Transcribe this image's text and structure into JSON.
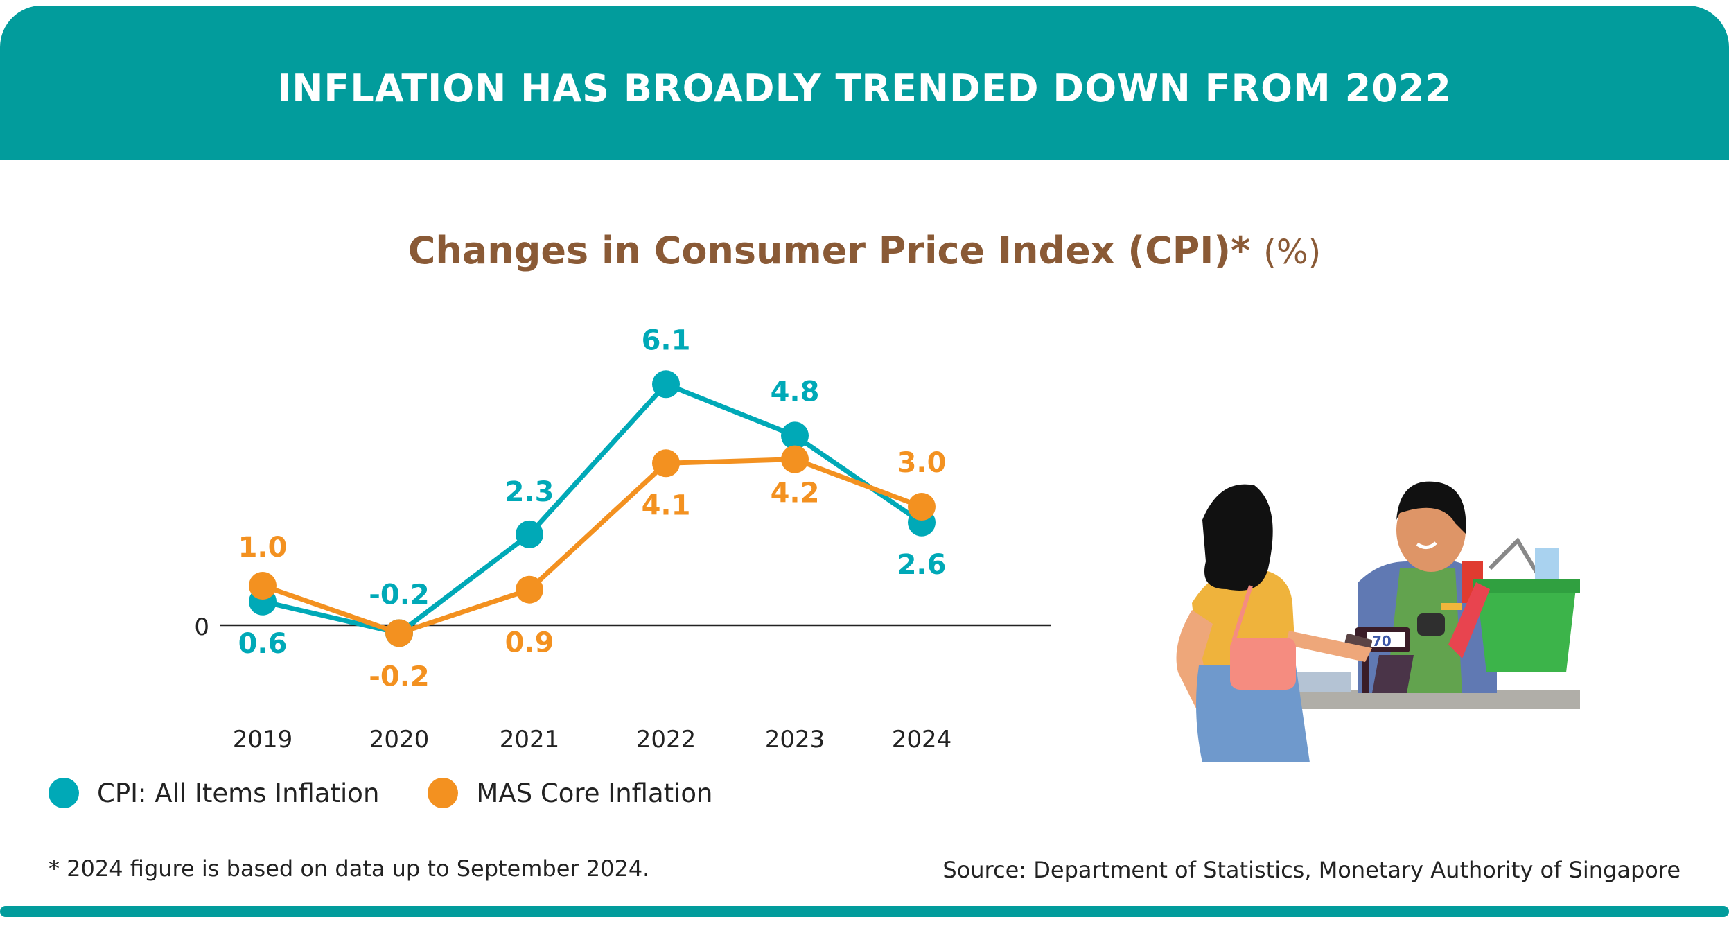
{
  "header": {
    "title": "INFLATION HAS BROADLY TRENDED DOWN FROM 2022"
  },
  "colors": {
    "teal_header": "#029c9c",
    "cpi": "#00a9b7",
    "core": "#f39120",
    "title_brown": "#8a5a36"
  },
  "chart_data": {
    "type": "line",
    "title": "Changes in Consumer Price Index (CPI)*",
    "title_unit": "(%)",
    "categories": [
      "2019",
      "2020",
      "2021",
      "2022",
      "2023",
      "2024"
    ],
    "zero_label": "0",
    "grid": false,
    "legend_placement": "bottom-left",
    "series": [
      {
        "name": "CPI: All Items Inflation",
        "color": "#00a9b7",
        "values": [
          0.6,
          -0.2,
          2.3,
          6.1,
          4.8,
          2.6
        ],
        "labels": [
          "0.6",
          "-0.2",
          "2.3",
          "6.1",
          "4.8",
          "2.6"
        ]
      },
      {
        "name": "MAS Core Inflation",
        "color": "#f39120",
        "values": [
          1.0,
          -0.2,
          0.9,
          4.1,
          4.2,
          3.0
        ],
        "labels": [
          "1.0",
          "-0.2",
          "0.9",
          "4.1",
          "4.2",
          "3.0"
        ]
      }
    ]
  },
  "footnote": "* 2024 figure is based on data up to September 2024.",
  "source": "Source: Department of Statistics, Monetary Authority of Singapore",
  "illustration": {
    "icon": "shopper-at-checkout-illustration",
    "display_text": "70"
  }
}
